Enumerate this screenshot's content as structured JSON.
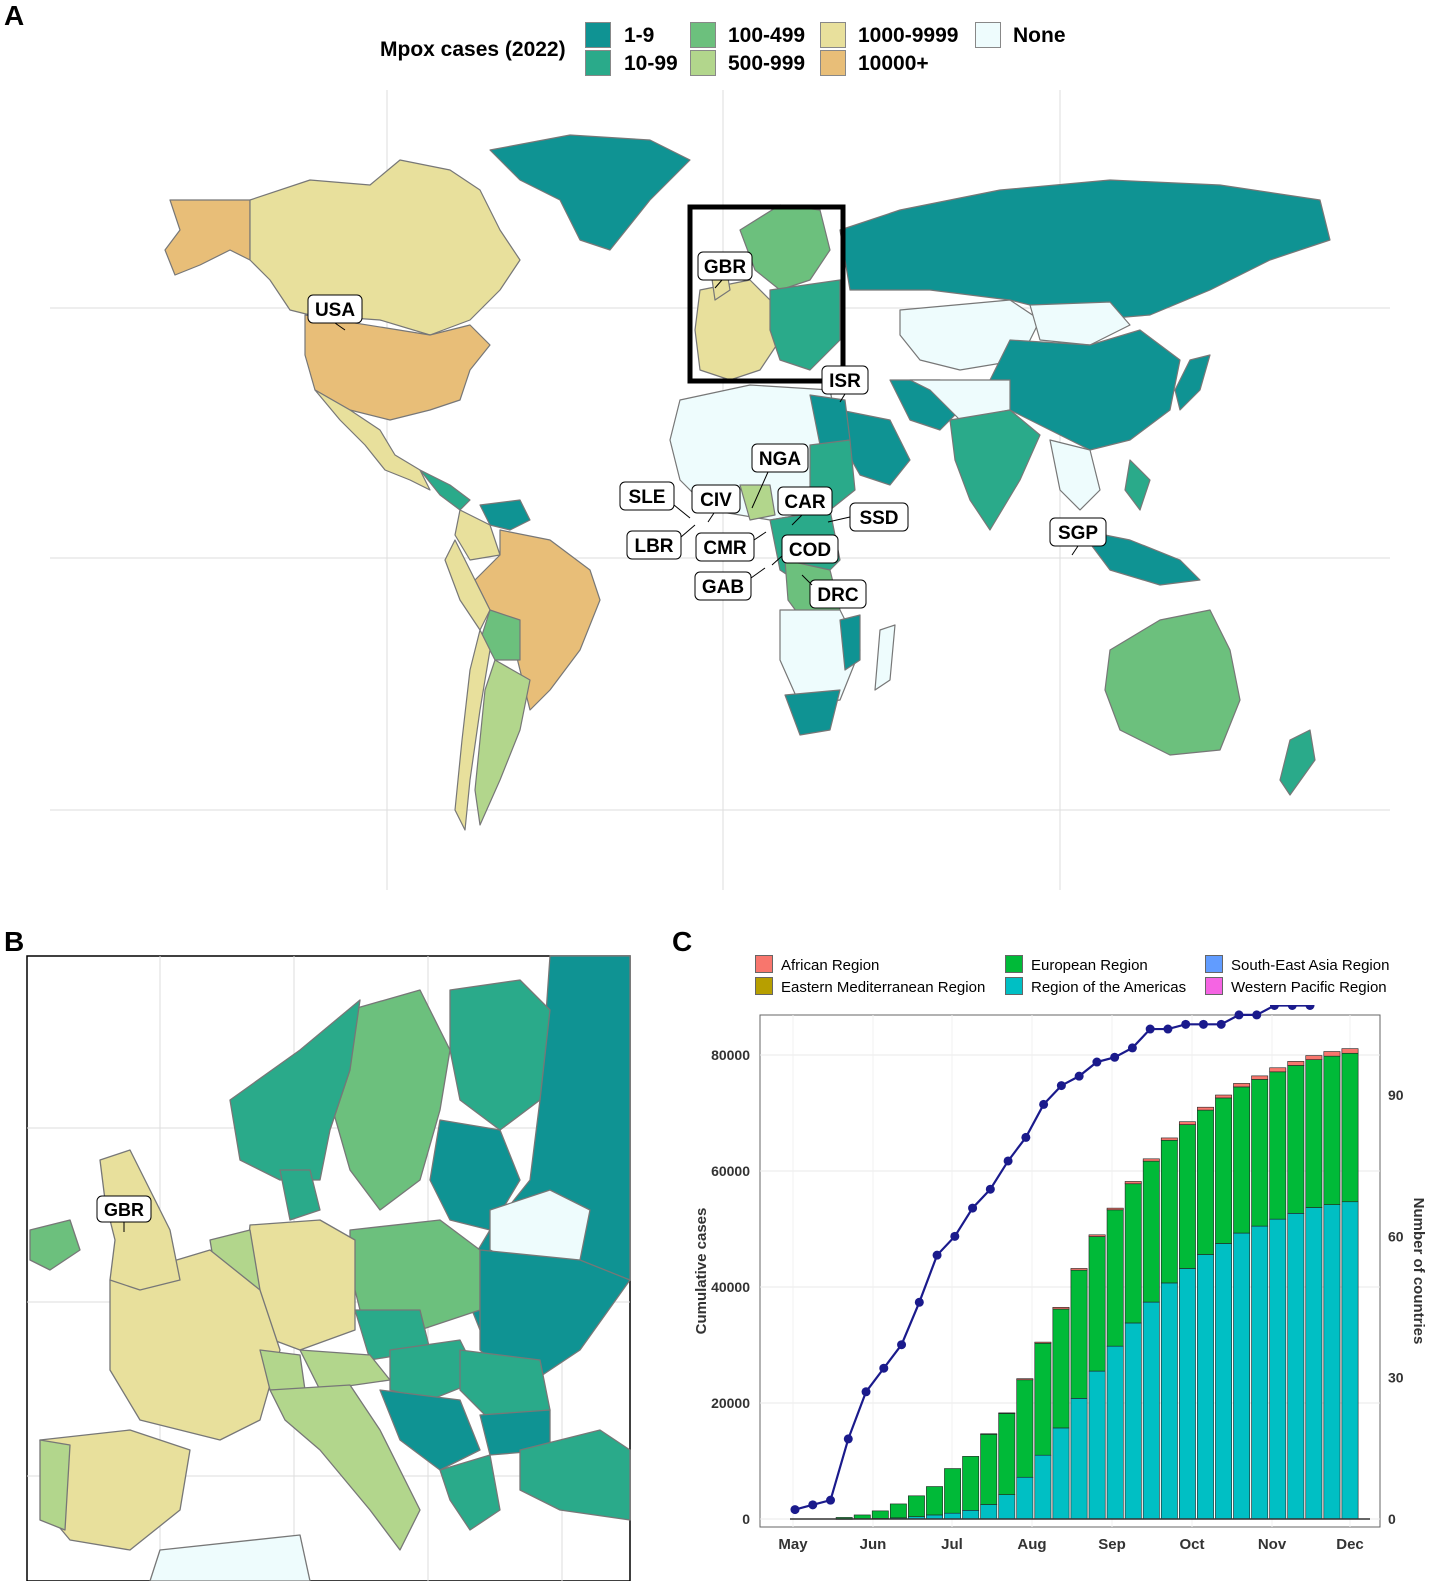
{
  "panel_labels": {
    "a": "A",
    "b": "B",
    "c": "C"
  },
  "map_legend": {
    "title": "Mpox cases (2022)",
    "items": [
      {
        "label": "1-9",
        "color": "#0f9393"
      },
      {
        "label": "10-99",
        "color": "#2aaa8a"
      },
      {
        "label": "100-499",
        "color": "#6cc07d"
      },
      {
        "label": "500-999",
        "color": "#b2d68c"
      },
      {
        "label": "1000-9999",
        "color": "#e8e09c"
      },
      {
        "label": "10000+",
        "color": "#e8be78"
      },
      {
        "label": "None",
        "color": "#eefcfd"
      }
    ]
  },
  "map_labels": [
    "USA",
    "GBR",
    "ISR",
    "NGA",
    "SLE",
    "CIV",
    "CAR",
    "SSD",
    "LBR",
    "CMR",
    "COD",
    "GAB",
    "DRC",
    "SGP"
  ],
  "europe_labels": [
    "GBR"
  ],
  "chart_data": {
    "type": "bar",
    "title": "",
    "xlabel": "",
    "ylabel": "Cumulative cases",
    "y2label": "Number of countries",
    "ylim": [
      0,
      82000
    ],
    "y2lim": [
      0,
      110
    ],
    "yticks": [
      "0",
      "20000",
      "40000",
      "60000",
      "80000"
    ],
    "y2ticks": [
      "0",
      "30",
      "60",
      "90"
    ],
    "x_tick_labels": [
      "May",
      "Jun",
      "Jul",
      "Aug",
      "Sep",
      "Oct",
      "Nov",
      "Dec"
    ],
    "legend_position": "top",
    "series": [
      {
        "name": "African Region",
        "color": "#f8766d"
      },
      {
        "name": "Eastern Mediterranean Region",
        "color": "#b79f00"
      },
      {
        "name": "European Region",
        "color": "#00ba38"
      },
      {
        "name": "Region of the Americas",
        "color": "#00bfc4"
      },
      {
        "name": "South-East Asia Region",
        "color": "#619cff"
      },
      {
        "name": "Western Pacific Region",
        "color": "#f564e3"
      }
    ],
    "bars": [
      {
        "americas": 0,
        "europe": 0,
        "africa": 0
      },
      {
        "americas": 0,
        "europe": 0,
        "africa": 0
      },
      {
        "americas": 0,
        "europe": 0,
        "africa": 0
      },
      {
        "americas": 20,
        "europe": 250,
        "africa": 0
      },
      {
        "americas": 50,
        "europe": 650,
        "africa": 0
      },
      {
        "americas": 100,
        "europe": 1300,
        "africa": 0
      },
      {
        "americas": 200,
        "europe": 2400,
        "africa": 0
      },
      {
        "americas": 400,
        "europe": 3600,
        "africa": 0
      },
      {
        "americas": 700,
        "europe": 4900,
        "africa": 0
      },
      {
        "americas": 1000,
        "europe": 7700,
        "africa": 0
      },
      {
        "americas": 1500,
        "europe": 9300,
        "africa": 0
      },
      {
        "americas": 2500,
        "europe": 12100,
        "africa": 100
      },
      {
        "americas": 4200,
        "europe": 14000,
        "africa": 100
      },
      {
        "americas": 7200,
        "europe": 16800,
        "africa": 200
      },
      {
        "americas": 11000,
        "europe": 19300,
        "africa": 200
      },
      {
        "americas": 15700,
        "europe": 20500,
        "africa": 300
      },
      {
        "americas": 20800,
        "europe": 22100,
        "africa": 300
      },
      {
        "americas": 25500,
        "europe": 23200,
        "africa": 300
      },
      {
        "americas": 29800,
        "europe": 23500,
        "africa": 300
      },
      {
        "americas": 33800,
        "europe": 24000,
        "africa": 400
      },
      {
        "americas": 37400,
        "europe": 24300,
        "africa": 400
      },
      {
        "americas": 40700,
        "europe": 24600,
        "africa": 400
      },
      {
        "americas": 43200,
        "europe": 24800,
        "africa": 500
      },
      {
        "americas": 45600,
        "europe": 24900,
        "africa": 500
      },
      {
        "americas": 47500,
        "europe": 25100,
        "africa": 500
      },
      {
        "americas": 49300,
        "europe": 25200,
        "africa": 600
      },
      {
        "americas": 50500,
        "europe": 25300,
        "africa": 600
      },
      {
        "americas": 51700,
        "europe": 25400,
        "africa": 700
      },
      {
        "americas": 52700,
        "europe": 25500,
        "africa": 700
      },
      {
        "americas": 53700,
        "europe": 25500,
        "africa": 700
      },
      {
        "americas": 54200,
        "europe": 25600,
        "africa": 800
      },
      {
        "americas": 54700,
        "europe": 25600,
        "africa": 800
      }
    ],
    "countries_line": [
      2,
      3,
      4,
      17,
      27,
      32,
      37,
      46,
      56,
      60,
      66,
      70,
      76,
      81,
      88,
      92,
      94,
      97,
      98,
      100,
      104,
      104,
      105,
      105,
      105,
      107,
      107,
      109,
      109,
      109
    ]
  }
}
